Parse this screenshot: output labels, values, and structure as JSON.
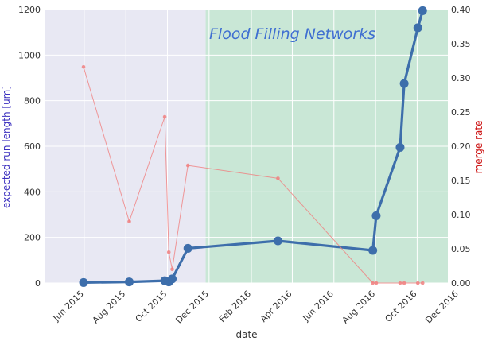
{
  "chart_data": {
    "type": "line",
    "annotation": "Flood Filling Networks",
    "xlabel": "date",
    "ylabel_left": "expected run length [um]",
    "ylabel_right": "merge rate",
    "x_range": [
      "2015-04-05",
      "2016-11-15"
    ],
    "ylim_left": [
      0,
      1200
    ],
    "ylim_right": [
      0,
      0.4
    ],
    "x_ticks": [
      {
        "date": "2015-06-01",
        "label": "Jun 2015"
      },
      {
        "date": "2015-08-01",
        "label": "Aug 2015"
      },
      {
        "date": "2015-10-01",
        "label": "Oct 2015"
      },
      {
        "date": "2015-12-01",
        "label": "Dec 2015"
      },
      {
        "date": "2016-02-01",
        "label": "Feb 2016"
      },
      {
        "date": "2016-04-01",
        "label": "Apr 2016"
      },
      {
        "date": "2016-06-01",
        "label": "Jun 2016"
      },
      {
        "date": "2016-08-01",
        "label": "Aug 2016"
      },
      {
        "date": "2016-10-01",
        "label": "Oct 2016"
      },
      {
        "date": "2016-12-01",
        "label": "Dec 2016"
      }
    ],
    "y_ticks_left": [
      0,
      200,
      400,
      600,
      800,
      1000,
      1200
    ],
    "y_ticks_right": [
      "0.00",
      "0.05",
      "0.10",
      "0.15",
      "0.20",
      "0.25",
      "0.30",
      "0.35",
      "0.40"
    ],
    "shaded_regions": [
      {
        "start": "2015-04-05",
        "end": "2015-11-26",
        "color": "#e8e8f3"
      },
      {
        "start": "2015-11-26",
        "end": "2016-11-15",
        "color": "#c9e7d6"
      }
    ],
    "series": [
      {
        "axis": "left",
        "color": "#3d6eab",
        "points": [
          {
            "x": "2015-05-31",
            "y": 2
          },
          {
            "x": "2015-08-06",
            "y": 5
          },
          {
            "x": "2015-09-27",
            "y": 10
          },
          {
            "x": "2015-10-03",
            "y": 5
          },
          {
            "x": "2015-10-08",
            "y": 18
          },
          {
            "x": "2015-10-31",
            "y": 152
          },
          {
            "x": "2016-03-11",
            "y": 185
          },
          {
            "x": "2016-07-28",
            "y": 143
          },
          {
            "x": "2016-08-02",
            "y": 295
          },
          {
            "x": "2016-09-06",
            "y": 595
          },
          {
            "x": "2016-09-12",
            "y": 875
          },
          {
            "x": "2016-10-02",
            "y": 1120
          },
          {
            "x": "2016-10-09",
            "y": 1195
          }
        ]
      },
      {
        "axis": "right",
        "color": "#f08080",
        "points": [
          {
            "x": "2015-05-31",
            "y": 0.316
          },
          {
            "x": "2015-08-06",
            "y": 0.09
          },
          {
            "x": "2015-09-27",
            "y": 0.243
          },
          {
            "x": "2015-10-03",
            "y": 0.045
          },
          {
            "x": "2015-10-08",
            "y": 0.02
          },
          {
            "x": "2015-10-31",
            "y": 0.172
          },
          {
            "x": "2016-03-11",
            "y": 0.153
          },
          {
            "x": "2016-07-28",
            "y": 0.0
          },
          {
            "x": "2016-08-02",
            "y": 0.0
          },
          {
            "x": "2016-09-06",
            "y": 0.0
          },
          {
            "x": "2016-09-12",
            "y": 0.0
          },
          {
            "x": "2016-10-02",
            "y": 0.0
          },
          {
            "x": "2016-10-09",
            "y": 0.0
          }
        ]
      }
    ],
    "colors": {
      "grid": "#ffffff",
      "left_label": "#3b2fbf",
      "right_label": "#cc1111"
    }
  }
}
